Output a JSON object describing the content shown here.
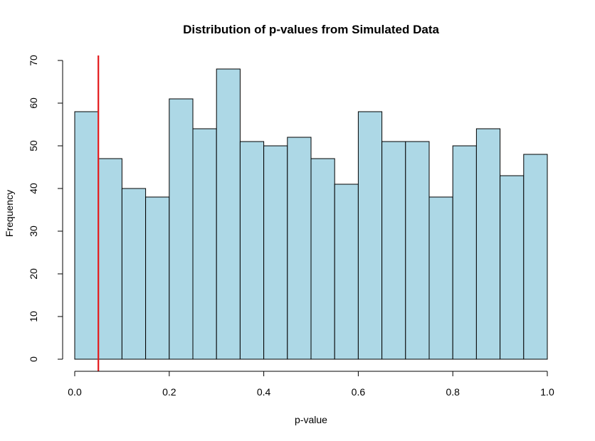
{
  "chart_data": {
    "type": "bar",
    "title": "Distribution of p-values from Simulated Data",
    "xlabel": "p-value",
    "ylabel": "Frequency",
    "bin_width": 0.05,
    "bin_edges": [
      0.0,
      0.05,
      0.1,
      0.15,
      0.2,
      0.25,
      0.3,
      0.35,
      0.4,
      0.45,
      0.5,
      0.55,
      0.6,
      0.65,
      0.7,
      0.75,
      0.8,
      0.85,
      0.9,
      0.95,
      1.0
    ],
    "values": [
      58,
      47,
      40,
      38,
      61,
      54,
      68,
      51,
      50,
      52,
      47,
      41,
      58,
      51,
      51,
      38,
      50,
      54,
      43,
      48
    ],
    "xlim": [
      0.0,
      1.0
    ],
    "ylim": [
      0,
      70
    ],
    "xticks": [
      "0.0",
      "0.2",
      "0.4",
      "0.6",
      "0.8",
      "1.0"
    ],
    "yticks": [
      "0",
      "10",
      "20",
      "30",
      "40",
      "50",
      "60",
      "70"
    ],
    "reference_line": {
      "x": 0.05,
      "color": "#e41a1c"
    },
    "bar_color": "#add8e6",
    "grid": false
  }
}
